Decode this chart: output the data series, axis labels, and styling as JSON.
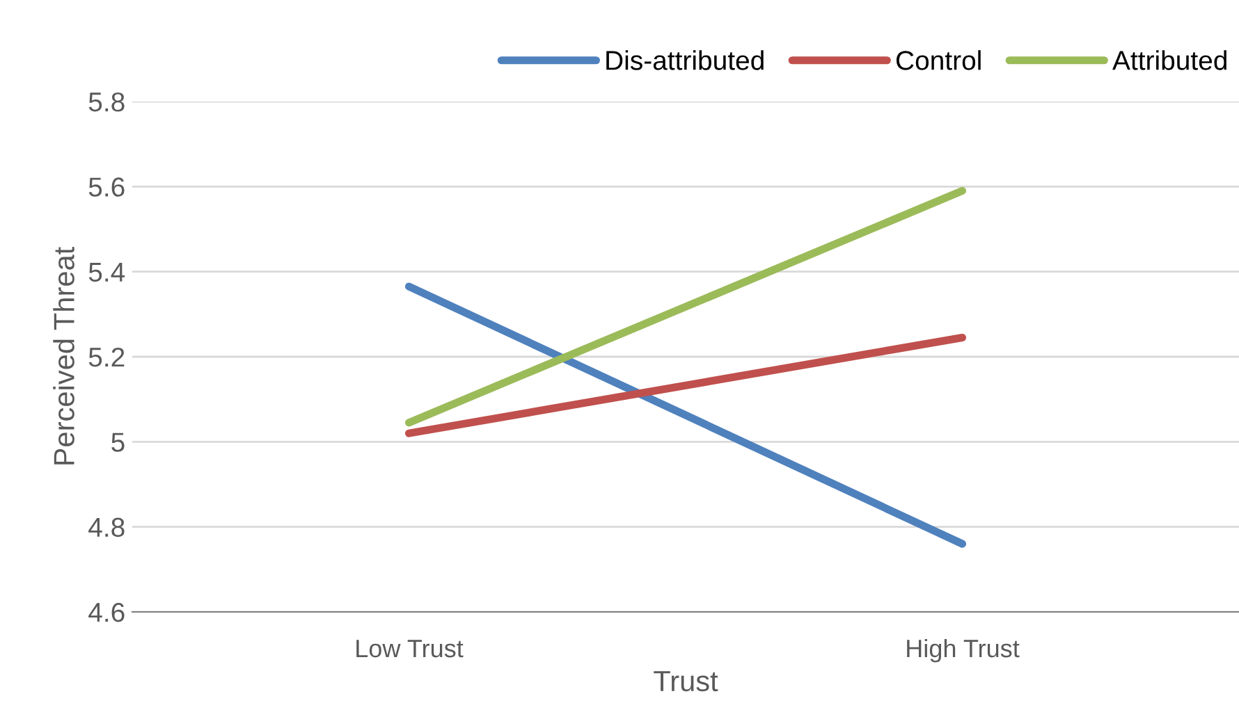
{
  "chart_data": {
    "type": "line",
    "xlabel": "Trust",
    "ylabel": "Perceived Threat",
    "categories": [
      "Low Trust",
      "High Trust"
    ],
    "series": [
      {
        "name": "Dis-attributed",
        "color": "#4f81bd",
        "values": [
          5.365,
          4.76
        ]
      },
      {
        "name": "Control",
        "color": "#c0504d",
        "values": [
          5.02,
          5.245
        ]
      },
      {
        "name": "Attributed",
        "color": "#9bbb59",
        "values": [
          5.045,
          5.59
        ]
      }
    ],
    "ylim": [
      4.6,
      5.8
    ],
    "yticks": [
      4.6,
      4.8,
      5,
      5.2,
      5.4,
      5.6,
      5.8
    ],
    "grid": "y",
    "legend": "top right",
    "marker": "none",
    "line_style": "solid"
  }
}
